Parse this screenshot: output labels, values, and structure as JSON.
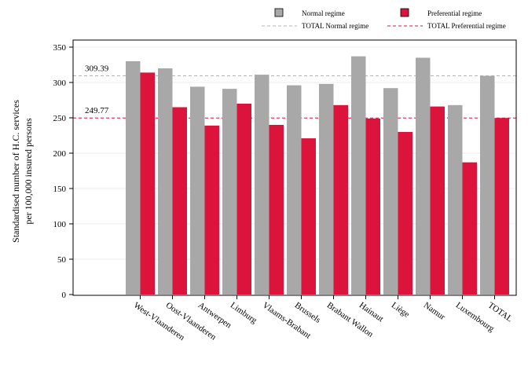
{
  "chart_data": {
    "type": "bar",
    "ylabel": "Standardised number of H.C. services per 100,000 insured persons",
    "ylabel_lines": [
      "Standardised number of H.C. services",
      "per 100,000 insured persons"
    ],
    "ylim": [
      0,
      350
    ],
    "yticks": [
      0,
      50,
      100,
      150,
      200,
      250,
      300,
      350
    ],
    "grid": true,
    "legend_position": "top-right",
    "categories": [
      "West-Vlaanderen",
      "Oost-Vlaanderen",
      "Antwerpen",
      "Limburg",
      "Vlaams-Brabant",
      "Brussels",
      "Brabant Wallon",
      "Hainaut",
      "Liège",
      "Namur",
      "Luxembourg",
      "TOTAL"
    ],
    "series": [
      {
        "name": "Normal regime",
        "color": "#a8a8a8",
        "values": [
          330,
          320,
          294,
          291,
          311,
          296,
          298,
          337,
          292,
          335,
          268,
          309.39
        ]
      },
      {
        "name": "Preferential regime",
        "color": "#dc143c",
        "values": [
          314,
          265,
          239,
          270,
          240,
          221,
          268,
          249,
          230,
          266,
          187,
          249.77
        ]
      }
    ],
    "reference_lines": [
      {
        "name": "TOTAL Normal regime",
        "value": 309.39,
        "label": "309.39",
        "color": "#b4b4b4"
      },
      {
        "name": "TOTAL Preferential regime",
        "value": 249.77,
        "label": "249.77",
        "color": "#dc143c"
      }
    ]
  }
}
